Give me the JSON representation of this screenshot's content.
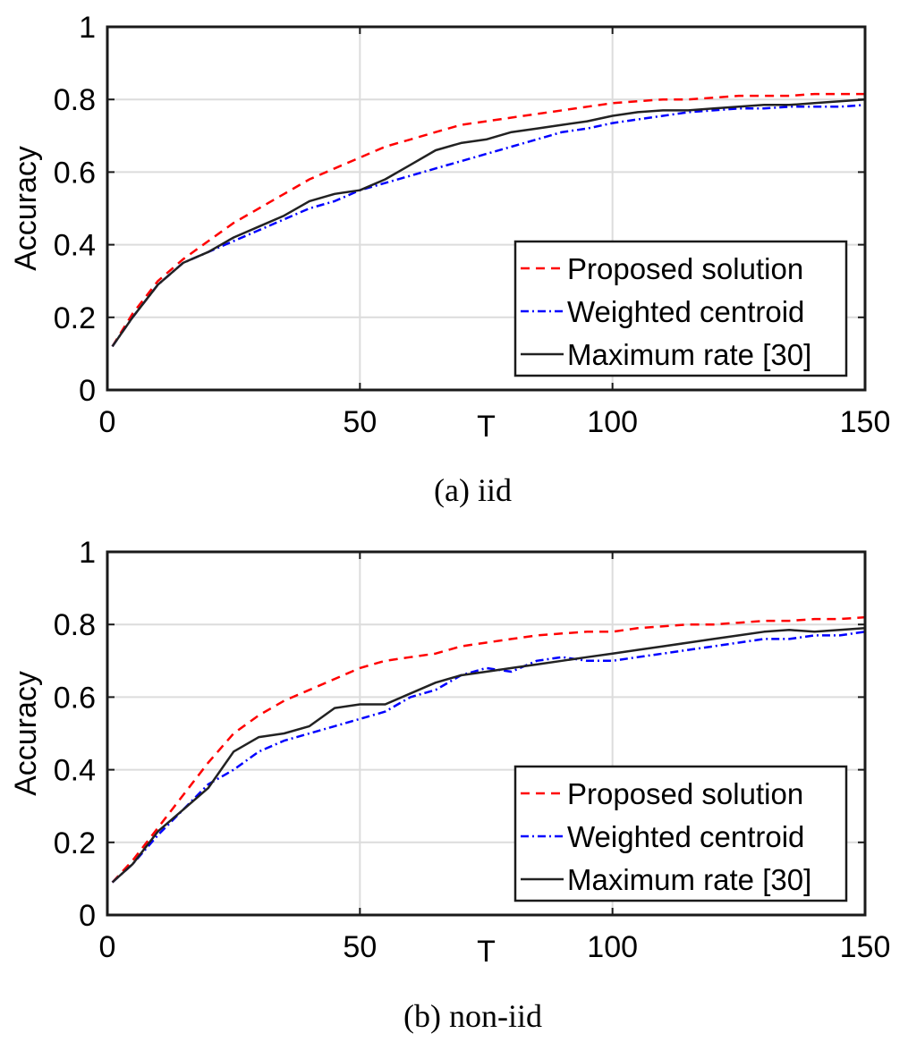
{
  "chart_data": [
    {
      "type": "line",
      "caption": "(a) iid",
      "xlabel": "T",
      "ylabel": "Accuracy",
      "xlim": [
        0,
        150
      ],
      "ylim": [
        0,
        1
      ],
      "xticks": [
        "0",
        "50",
        "100",
        "150"
      ],
      "yticks": [
        "0",
        "0.2",
        "0.4",
        "0.6",
        "0.8",
        "1"
      ],
      "grid": true,
      "legend_position": "bottom-right",
      "series": [
        {
          "name": "Proposed solution",
          "color": "#ff0000",
          "style": "dashed",
          "x": [
            1,
            5,
            10,
            15,
            20,
            25,
            30,
            35,
            40,
            45,
            50,
            55,
            60,
            65,
            70,
            75,
            80,
            85,
            90,
            95,
            100,
            105,
            110,
            115,
            120,
            125,
            130,
            135,
            140,
            145,
            150
          ],
          "y": [
            0.12,
            0.21,
            0.3,
            0.36,
            0.41,
            0.46,
            0.5,
            0.54,
            0.58,
            0.61,
            0.64,
            0.67,
            0.69,
            0.71,
            0.73,
            0.74,
            0.75,
            0.76,
            0.77,
            0.78,
            0.79,
            0.795,
            0.8,
            0.8,
            0.805,
            0.81,
            0.81,
            0.81,
            0.815,
            0.815,
            0.815
          ]
        },
        {
          "name": "Weighted centroid",
          "color": "#0000ff",
          "style": "dashdot",
          "x": [
            1,
            5,
            10,
            15,
            20,
            25,
            30,
            35,
            40,
            45,
            50,
            55,
            60,
            65,
            70,
            75,
            80,
            85,
            90,
            95,
            100,
            105,
            110,
            115,
            120,
            125,
            130,
            135,
            140,
            145,
            150
          ],
          "y": [
            0.12,
            0.2,
            0.29,
            0.35,
            0.38,
            0.41,
            0.44,
            0.47,
            0.5,
            0.52,
            0.55,
            0.57,
            0.59,
            0.61,
            0.63,
            0.65,
            0.67,
            0.69,
            0.71,
            0.72,
            0.735,
            0.745,
            0.755,
            0.765,
            0.77,
            0.775,
            0.775,
            0.78,
            0.78,
            0.78,
            0.785
          ]
        },
        {
          "name": "Maximum rate [30]",
          "color": "#222222",
          "style": "solid",
          "x": [
            1,
            5,
            10,
            15,
            20,
            25,
            30,
            35,
            40,
            45,
            50,
            55,
            60,
            65,
            70,
            75,
            80,
            85,
            90,
            95,
            100,
            105,
            110,
            115,
            120,
            125,
            130,
            135,
            140,
            145,
            150
          ],
          "y": [
            0.12,
            0.2,
            0.29,
            0.35,
            0.38,
            0.42,
            0.45,
            0.48,
            0.52,
            0.54,
            0.55,
            0.58,
            0.62,
            0.66,
            0.68,
            0.69,
            0.71,
            0.72,
            0.73,
            0.74,
            0.755,
            0.765,
            0.77,
            0.77,
            0.775,
            0.78,
            0.785,
            0.785,
            0.79,
            0.795,
            0.8
          ]
        }
      ]
    },
    {
      "type": "line",
      "caption": "(b) non-iid",
      "xlabel": "T",
      "ylabel": "Accuracy",
      "xlim": [
        0,
        150
      ],
      "ylim": [
        0,
        1
      ],
      "xticks": [
        "0",
        "50",
        "100",
        "150"
      ],
      "yticks": [
        "0",
        "0.2",
        "0.4",
        "0.6",
        "0.8",
        "1"
      ],
      "grid": true,
      "legend_position": "bottom-right",
      "series": [
        {
          "name": "Proposed solution",
          "color": "#ff0000",
          "style": "dashed",
          "x": [
            1,
            5,
            10,
            15,
            20,
            25,
            30,
            35,
            40,
            45,
            50,
            55,
            60,
            65,
            70,
            75,
            80,
            85,
            90,
            95,
            100,
            105,
            110,
            115,
            120,
            125,
            130,
            135,
            140,
            145,
            150
          ],
          "y": [
            0.09,
            0.15,
            0.24,
            0.33,
            0.42,
            0.5,
            0.55,
            0.59,
            0.62,
            0.65,
            0.68,
            0.7,
            0.71,
            0.72,
            0.74,
            0.75,
            0.76,
            0.77,
            0.775,
            0.78,
            0.78,
            0.79,
            0.795,
            0.8,
            0.8,
            0.805,
            0.81,
            0.81,
            0.815,
            0.815,
            0.82
          ]
        },
        {
          "name": "Weighted centroid",
          "color": "#0000ff",
          "style": "dashdot",
          "x": [
            1,
            5,
            10,
            15,
            20,
            25,
            30,
            35,
            40,
            45,
            50,
            55,
            60,
            65,
            70,
            75,
            80,
            85,
            90,
            95,
            100,
            105,
            110,
            115,
            120,
            125,
            130,
            135,
            140,
            145,
            150
          ],
          "y": [
            0.09,
            0.14,
            0.22,
            0.29,
            0.36,
            0.4,
            0.45,
            0.48,
            0.5,
            0.52,
            0.54,
            0.56,
            0.6,
            0.62,
            0.66,
            0.68,
            0.67,
            0.7,
            0.71,
            0.7,
            0.7,
            0.71,
            0.72,
            0.73,
            0.74,
            0.75,
            0.76,
            0.76,
            0.77,
            0.77,
            0.78
          ]
        },
        {
          "name": "Maximum rate [30]",
          "color": "#222222",
          "style": "solid",
          "x": [
            1,
            5,
            10,
            15,
            20,
            25,
            30,
            35,
            40,
            45,
            50,
            55,
            60,
            65,
            70,
            75,
            80,
            85,
            90,
            95,
            100,
            105,
            110,
            115,
            120,
            125,
            130,
            135,
            140,
            145,
            150
          ],
          "y": [
            0.09,
            0.14,
            0.23,
            0.29,
            0.35,
            0.45,
            0.49,
            0.5,
            0.52,
            0.57,
            0.58,
            0.58,
            0.61,
            0.64,
            0.66,
            0.67,
            0.68,
            0.69,
            0.7,
            0.71,
            0.72,
            0.73,
            0.74,
            0.75,
            0.76,
            0.77,
            0.78,
            0.785,
            0.78,
            0.785,
            0.79
          ]
        }
      ]
    }
  ]
}
